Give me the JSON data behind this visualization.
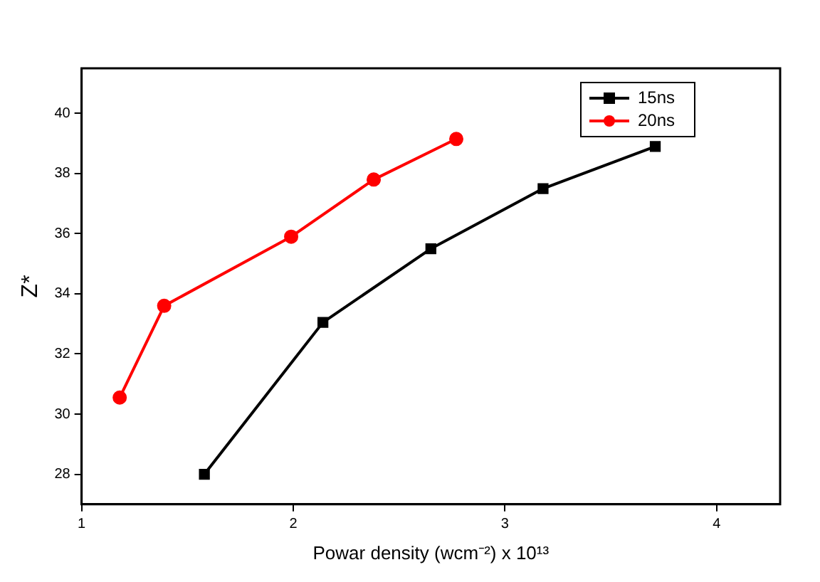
{
  "chart_data": {
    "type": "line",
    "xlabel": "Powar density (wcm⁻²) x 10¹³",
    "ylabel": "Z*",
    "xlim": [
      1,
      4.3
    ],
    "xticks": [
      1,
      2,
      3,
      4
    ],
    "ylim": [
      27,
      41.5
    ],
    "yticks": [
      28,
      30,
      32,
      34,
      36,
      38,
      40
    ],
    "grid": false,
    "legend": "top right",
    "series": [
      {
        "name": "15ns",
        "color": "#000000",
        "marker": "square",
        "x": [
          1.58,
          2.14,
          2.65,
          3.18,
          3.71
        ],
        "values": [
          28,
          33.05,
          35.5,
          37.5,
          38.9
        ]
      },
      {
        "name": "20ns",
        "color": "#ff0000",
        "marker": "circle",
        "x": [
          1.18,
          1.39,
          1.99,
          2.38,
          2.77
        ],
        "values": [
          30.55,
          33.6,
          35.9,
          37.8,
          39.15
        ]
      }
    ]
  }
}
